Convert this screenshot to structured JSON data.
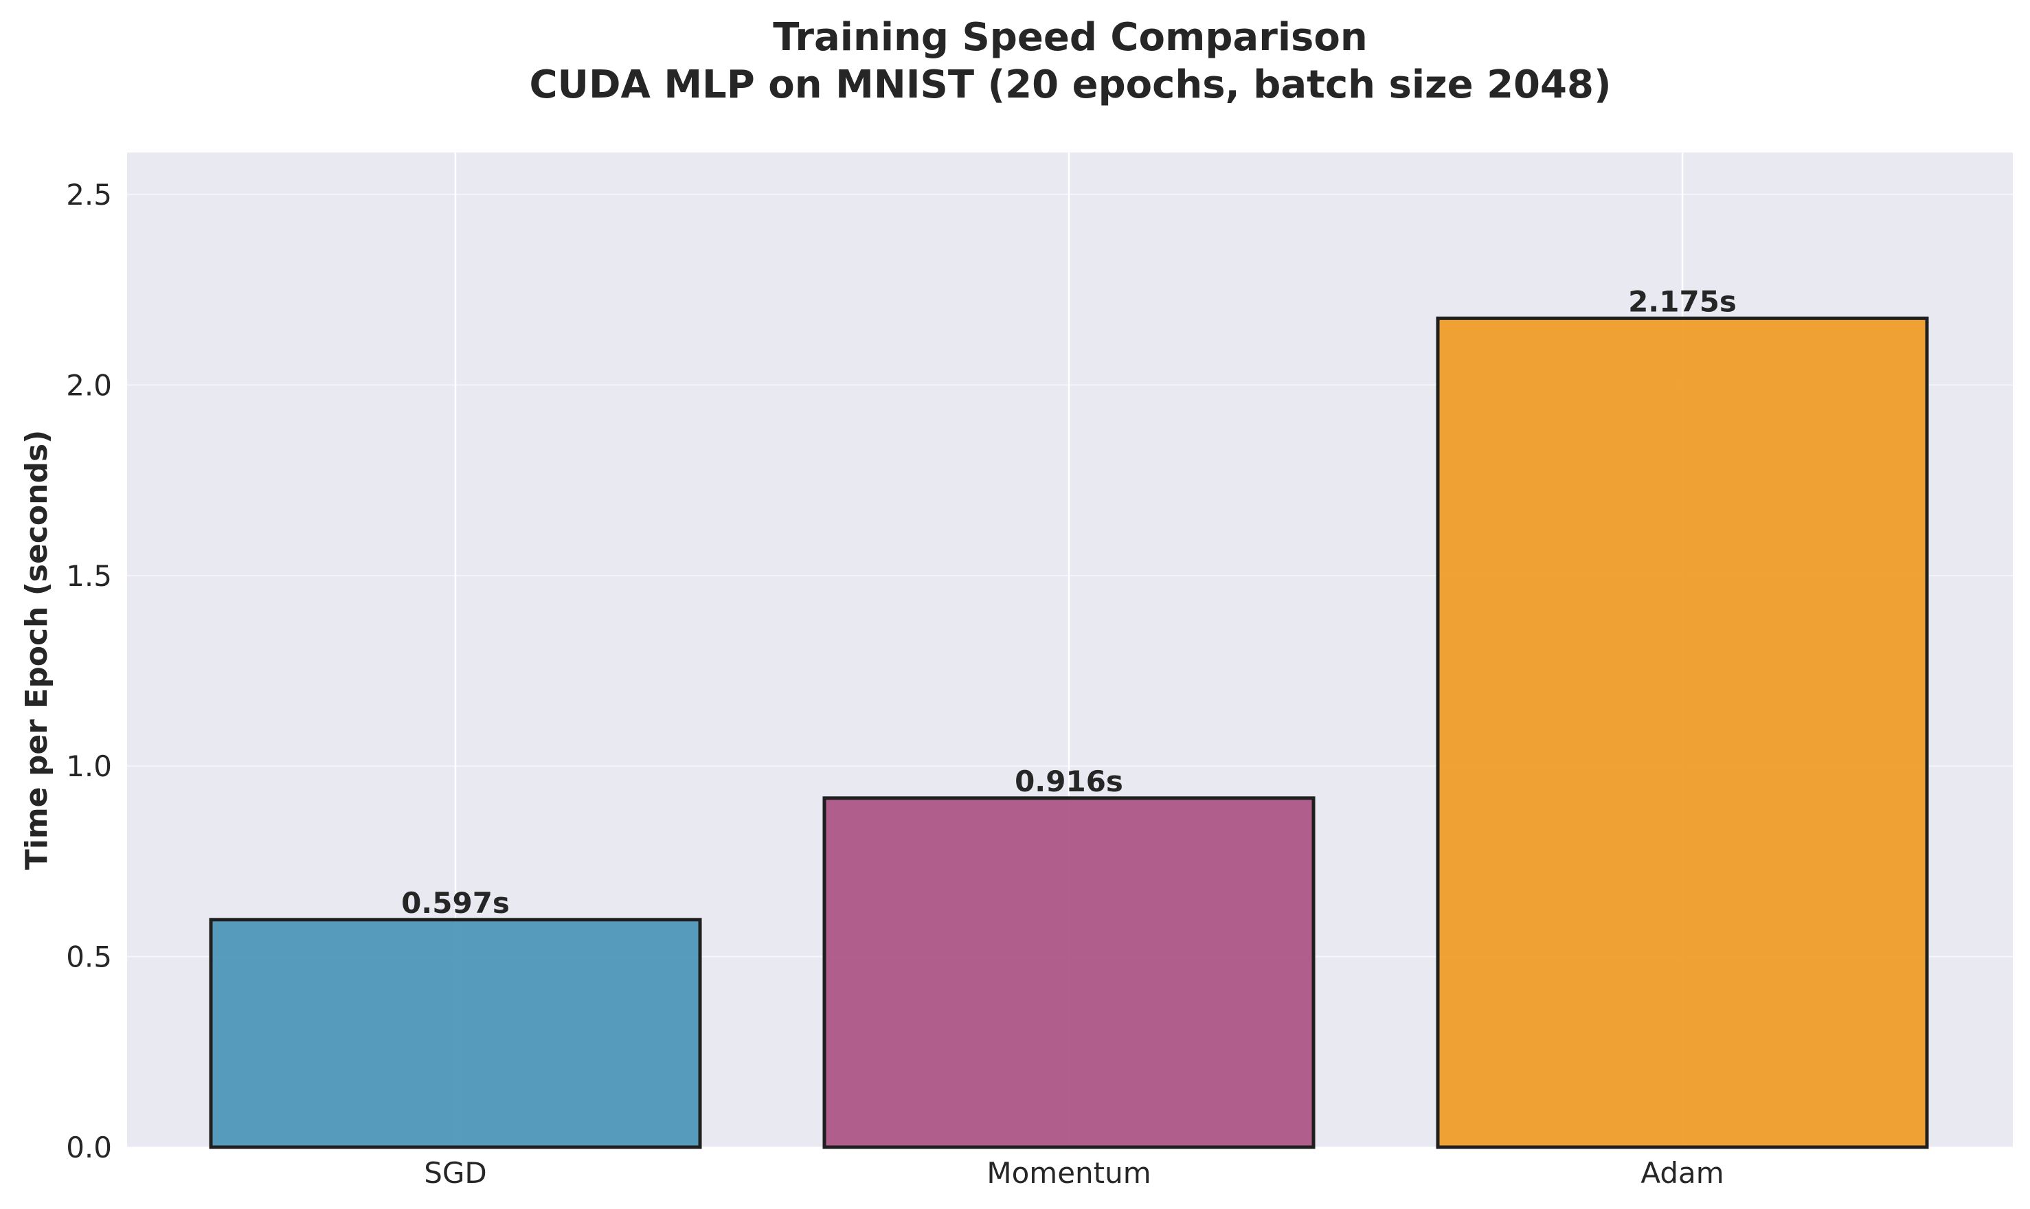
{
  "chart_data": {
    "type": "bar",
    "title": "Training Speed Comparison",
    "subtitle": "CUDA MLP on MNIST (20 epochs, batch size 2048)",
    "xlabel": "",
    "ylabel": "Time per Epoch (seconds)",
    "categories": [
      "SGD",
      "Momentum",
      "Adam"
    ],
    "values": [
      0.597,
      0.916,
      2.175
    ],
    "data_labels": [
      "0.597s",
      "0.916s",
      "2.175s"
    ],
    "colors": [
      "#4a94b7",
      "#aa5283",
      "#ef9a24"
    ],
    "edge_color": "#1f1f1f",
    "ylim": [
      0,
      2.61
    ],
    "yticks": [
      0.0,
      0.5,
      1.0,
      1.5,
      2.0,
      2.5
    ],
    "ytick_labels": [
      "0.0",
      "0.5",
      "1.0",
      "1.5",
      "2.0",
      "2.5"
    ],
    "grid": true,
    "background": "#e9e9f2"
  }
}
